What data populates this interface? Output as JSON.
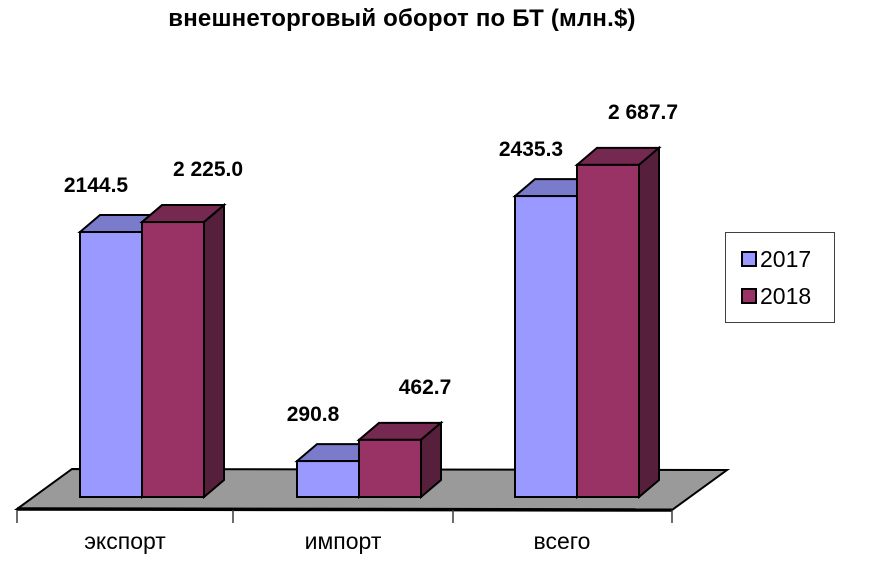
{
  "chart_data": {
    "type": "bar",
    "variant": "3d-clustered-column",
    "title": "внешнеторговый оборот по БТ (млн.$)",
    "categories": [
      "экспорт",
      "импорт",
      "всего"
    ],
    "series": [
      {
        "name": "2017",
        "color": "#9999FF",
        "top_color": "#7B7BCB",
        "side_color": "#5F5FA6",
        "values": [
          2144.5,
          290.8,
          2435.3
        ],
        "labels": [
          "2144.5",
          "290.8",
          "2435.3"
        ]
      },
      {
        "name": "2018",
        "color": "#993366",
        "top_color": "#752950",
        "side_color": "#56203C",
        "values": [
          2225.0,
          462.7,
          2687.7
        ],
        "labels": [
          "2 225.0",
          "462.7",
          "2 687.7"
        ]
      }
    ],
    "legend": {
      "position": "right",
      "entries": [
        "2017",
        "2018"
      ]
    },
    "floor_color": "#9A9A9A",
    "outline_color": "#000000",
    "tick_color": "#3A3A3A",
    "background": "#FFFFFF",
    "value_axis_visible": false,
    "gridlines": false,
    "ylim": [
      0,
      2800
    ]
  }
}
